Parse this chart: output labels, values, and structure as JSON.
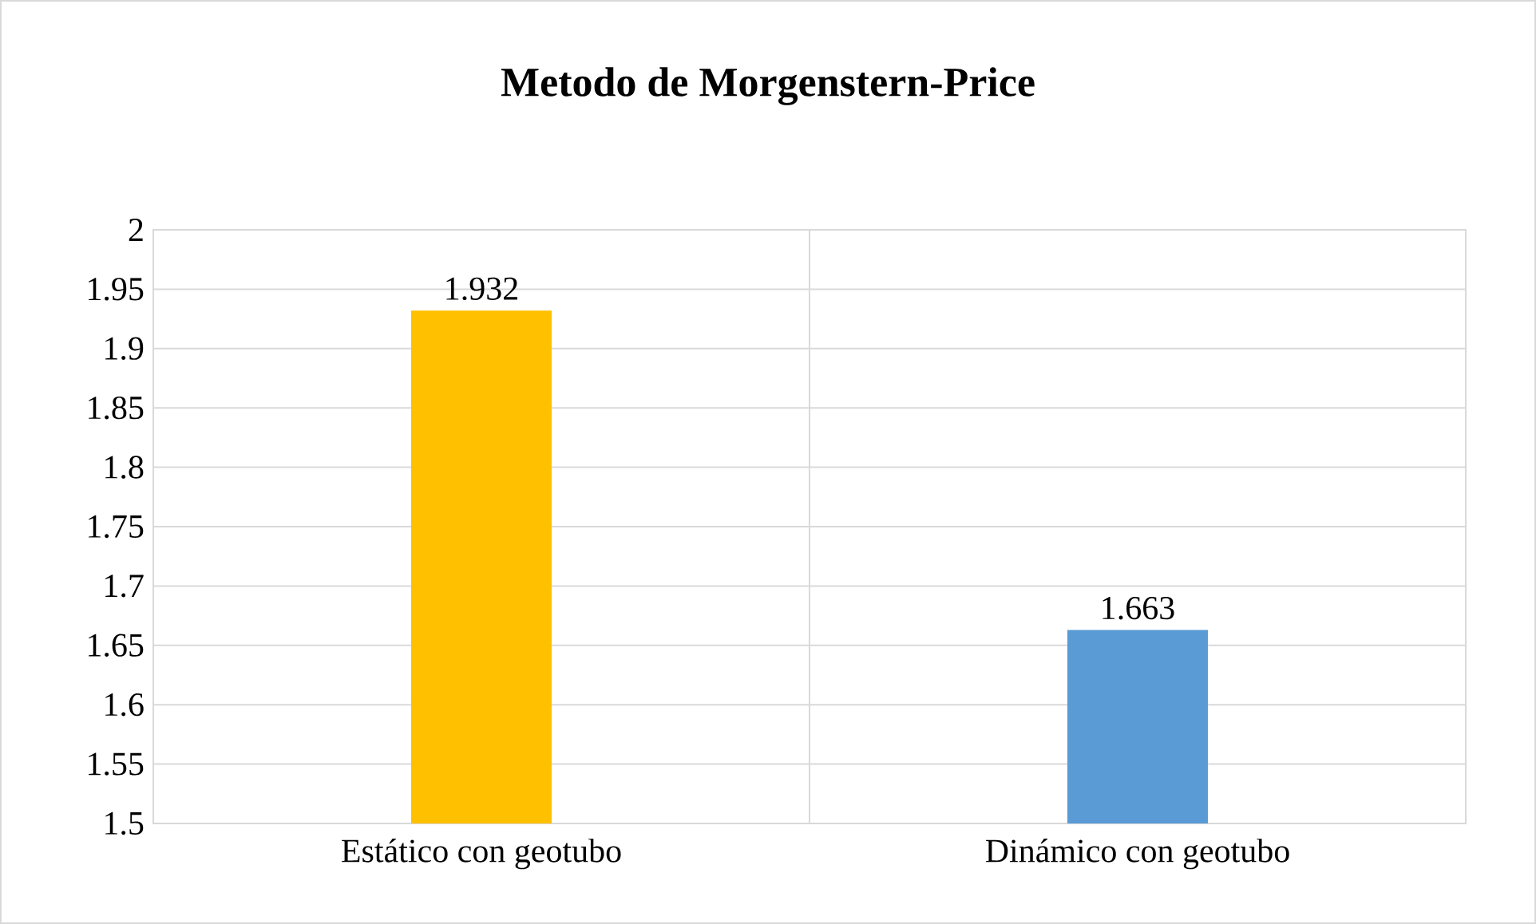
{
  "chart_data": {
    "type": "bar",
    "title": "Metodo de Morgenstern-Price",
    "categories": [
      "Estático con geotubo",
      "Dinámico con geotubo"
    ],
    "values": [
      1.932,
      1.663
    ],
    "colors": [
      "#ffc000",
      "#5b9bd5"
    ],
    "ylim": [
      1.5,
      2
    ],
    "yticks": [
      1.5,
      1.55,
      1.6,
      1.65,
      1.7,
      1.75,
      1.8,
      1.85,
      1.9,
      1.95,
      2
    ],
    "grid": true,
    "data_labels": true
  }
}
